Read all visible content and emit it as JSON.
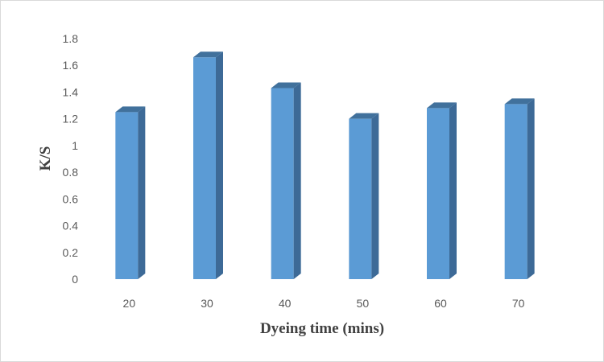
{
  "chart_data": {
    "type": "bar",
    "style": "3d-column",
    "categories": [
      "20",
      "30",
      "40",
      "50",
      "60",
      "70"
    ],
    "values": [
      1.25,
      1.66,
      1.43,
      1.2,
      1.28,
      1.31
    ],
    "ylim": [
      0,
      1.8
    ],
    "yticks": [
      "0",
      "0.2",
      "0.4",
      "0.6",
      "0.8",
      "1",
      "1.2",
      "1.4",
      "1.6",
      "1.8"
    ],
    "xlabel": "Dyeing time (mins)",
    "ylabel": "K/S",
    "grid": false,
    "legend": "none",
    "colors": {
      "bar_front": "#5b9bd5",
      "bar_side": "#3d6a97",
      "bar_top": "#41719c"
    }
  }
}
